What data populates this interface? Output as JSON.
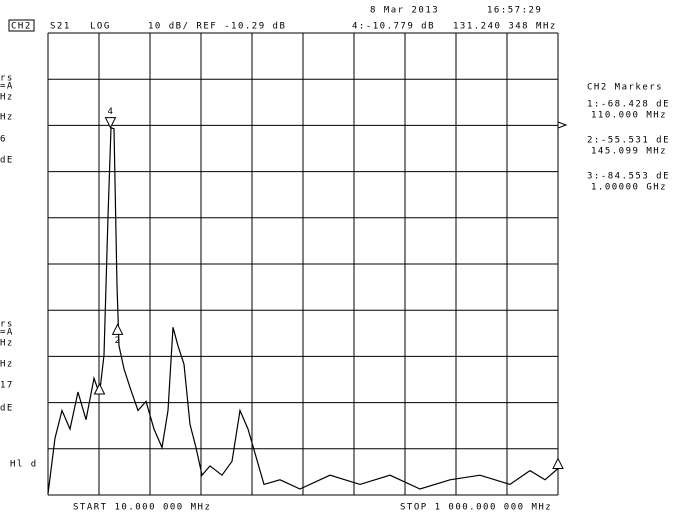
{
  "chart_data": {
    "type": "line",
    "date": "8 Mar 2013",
    "time": "16:57:29",
    "channel": "CH2",
    "parameter": "S21",
    "format": "LOG",
    "scale": "10 dB/ REF -10.29 dB",
    "active_marker": "4:-10.779 dB",
    "active_marker_freq": "131.240 348 MHz",
    "start": "START 10.000 000 MHz",
    "stop": "STOP 1 000.000 000 MHz",
    "marker_panel_title": "CH2 Markers",
    "left_fragments": [
      "rs",
      "=A",
      "Hz",
      "Hz",
      "6",
      "dE",
      "rs",
      "=A",
      "Hz",
      "Hz",
      "17",
      "dE",
      "Hl d"
    ],
    "xlim": [
      10,
      1000
    ],
    "ylim": [
      -90.29,
      9.71
    ],
    "color": "#000000",
    "x": [
      10,
      23.6,
      37.2,
      52.7,
      68.2,
      83.8,
      99.3,
      110,
      118.7,
      126.5,
      132.3,
      138.1,
      143.9,
      147.8,
      157.5,
      169.2,
      184.7,
      200.2,
      215.7,
      231.3,
      242.9,
      252.6,
      262.3,
      274.0,
      285.6,
      297.3,
      308.9,
      324.4,
      347.7,
      367.1,
      382.7,
      398.2,
      413.7,
      429.3,
      460.3,
      499.1,
      557.4,
      615.6,
      673.8,
      732.1,
      790.3,
      848.5,
      906.8,
      945.6,
      974.7,
      1000
    ],
    "values": [
      -90,
      -78,
      -72,
      -76,
      -68,
      -74,
      -65,
      -68.428,
      -60,
      -30,
      -10.8,
      -11,
      -45,
      -58,
      -63,
      -67,
      -72,
      -70,
      -76,
      -80,
      -72,
      -54,
      -58,
      -62,
      -75,
      -80,
      -86,
      -84,
      -86,
      -83,
      -72,
      -76,
      -82,
      -88,
      -87,
      -89,
      -86,
      -88,
      -86,
      -89,
      -87,
      -86,
      -88,
      -85,
      -87,
      -84.553
    ],
    "markers": [
      {
        "readout": "1:-68.428 dE",
        "freq": "110.000 MHz",
        "x": 110,
        "y": -68.428
      },
      {
        "readout": "2:-55.531 dE",
        "freq": "145.099 MHz",
        "x": 145.099,
        "y": -55.531,
        "symbol": "2"
      },
      {
        "readout": "3:-84.553 dE",
        "freq": "1.00000 GHz",
        "x": 1000,
        "y": -84.553
      },
      {
        "x": 131.240348,
        "y": -10.779,
        "symbol": "4"
      }
    ]
  }
}
